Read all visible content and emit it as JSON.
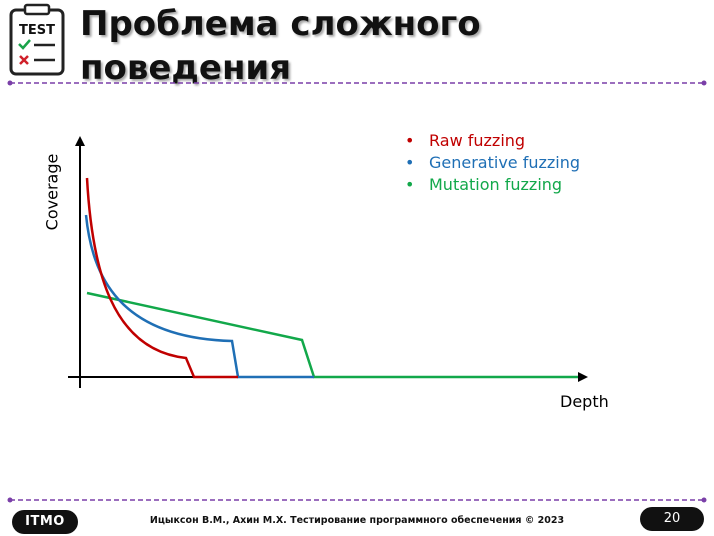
{
  "slide": {
    "title": "Проблема сложного поведения",
    "page_number": "20",
    "footer": "Ицыксон В.М., Ахин М.Х. Тестирование программного обеспечения © 2023",
    "logo_text": "IТМО",
    "icon_text": "TEST",
    "divider_color": "#7a3fa8"
  },
  "chart_data": {
    "type": "line",
    "xlabel": "Depth",
    "ylabel": "Coverage",
    "legend_position": "top-right",
    "series": [
      {
        "name": "Raw fuzzing",
        "color": "#c00000"
      },
      {
        "name": "Generative fuzzing",
        "color": "#1f6fb5"
      },
      {
        "name": "Mutation fuzzing",
        "color": "#12a84a"
      }
    ]
  }
}
